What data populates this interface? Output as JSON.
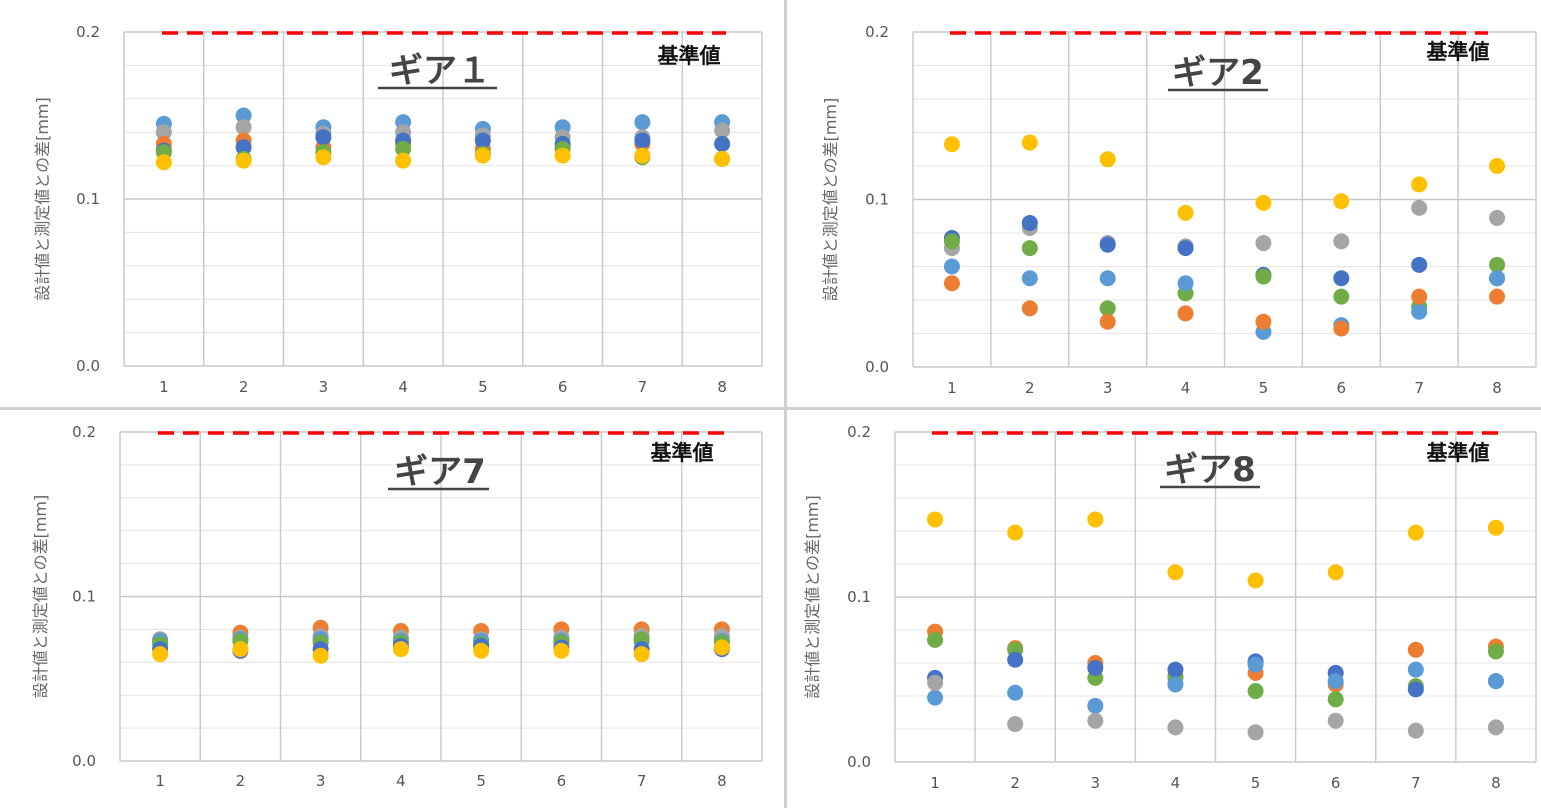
{
  "chart_data": [
    {
      "type": "scatter",
      "title": "ギア１",
      "ylabel": "設計値と測定値との差[mm]",
      "xlabel": "",
      "ylim": [
        0,
        0.2
      ],
      "yticks": [
        "0.0",
        "0.1",
        "0.2"
      ],
      "categories": [
        "1",
        "2",
        "3",
        "4",
        "5",
        "6",
        "7",
        "8"
      ],
      "reference": {
        "label": "基準値",
        "value": 0.2,
        "color": "#ff0000"
      },
      "series": [
        {
          "color": "#5b9bd5",
          "values": [
            0.145,
            0.15,
            0.143,
            0.146,
            0.142,
            0.143,
            0.146,
            0.146
          ]
        },
        {
          "color": "#a5a5a5",
          "values": [
            0.14,
            0.143,
            0.139,
            0.14,
            0.138,
            0.137,
            0.137,
            0.141
          ]
        },
        {
          "color": "#ed7d31",
          "values": [
            0.133,
            0.135,
            0.131,
            0.133,
            0.13,
            0.132,
            0.133,
            0.133
          ]
        },
        {
          "color": "#4472c4",
          "values": [
            0.129,
            0.131,
            0.137,
            0.135,
            0.135,
            0.133,
            0.135,
            0.133
          ]
        },
        {
          "color": "#70ad47",
          "values": [
            0.128,
            0.124,
            0.128,
            0.13,
            0.127,
            0.13,
            0.125,
            0.124
          ]
        },
        {
          "color": "#ffc000",
          "values": [
            0.122,
            0.123,
            0.125,
            0.123,
            0.126,
            0.126,
            0.126,
            0.124
          ]
        }
      ]
    },
    {
      "type": "scatter",
      "title": "ギア2",
      "ylabel": "設計値と測定値との差[mm]",
      "xlabel": "",
      "ylim": [
        0,
        0.2
      ],
      "yticks": [
        "0.0",
        "0.1",
        "0.2"
      ],
      "categories": [
        "1",
        "2",
        "3",
        "4",
        "5",
        "6",
        "7",
        "8"
      ],
      "reference": {
        "label": "基準値",
        "value": 0.2,
        "color": "#ff0000"
      },
      "series": [
        {
          "color": "#ffc000",
          "values": [
            0.133,
            0.134,
            0.124,
            0.092,
            0.098,
            0.099,
            0.109,
            0.12
          ]
        },
        {
          "color": "#a5a5a5",
          "values": [
            0.071,
            0.083,
            0.074,
            0.072,
            0.074,
            0.075,
            0.095,
            0.089
          ]
        },
        {
          "color": "#4472c4",
          "values": [
            0.077,
            0.086,
            0.073,
            0.071,
            0.055,
            0.053,
            0.061,
            0.053
          ]
        },
        {
          "color": "#70ad47",
          "values": [
            0.075,
            0.071,
            0.035,
            0.044,
            0.054,
            0.042,
            0.036,
            0.061
          ]
        },
        {
          "color": "#5b9bd5",
          "values": [
            0.06,
            0.053,
            0.053,
            0.05,
            0.021,
            0.025,
            0.033,
            0.053
          ]
        },
        {
          "color": "#ed7d31",
          "values": [
            0.05,
            0.035,
            0.027,
            0.032,
            0.027,
            0.023,
            0.042,
            0.042
          ]
        }
      ]
    },
    {
      "type": "scatter",
      "title": "ギア7",
      "ylabel": "設計値と測定値との差[mm]",
      "xlabel": "",
      "ylim": [
        0,
        0.2
      ],
      "yticks": [
        "0.0",
        "0.1",
        "0.2"
      ],
      "categories": [
        "1",
        "2",
        "3",
        "4",
        "5",
        "6",
        "7",
        "8"
      ],
      "reference": {
        "label": "基準値",
        "value": 0.2,
        "color": "#ff0000"
      },
      "series": [
        {
          "color": "#ed7d31",
          "values": [
            0.072,
            0.078,
            0.081,
            0.079,
            0.079,
            0.08,
            0.08,
            0.08
          ]
        },
        {
          "color": "#a5a5a5",
          "values": [
            0.074,
            0.075,
            0.076,
            0.075,
            0.074,
            0.075,
            0.076,
            0.076
          ]
        },
        {
          "color": "#5b9bd5",
          "values": [
            0.073,
            0.074,
            0.074,
            0.073,
            0.073,
            0.073,
            0.073,
            0.073
          ]
        },
        {
          "color": "#70ad47",
          "values": [
            0.071,
            0.073,
            0.072,
            0.072,
            0.071,
            0.072,
            0.074,
            0.072
          ]
        },
        {
          "color": "#4472c4",
          "values": [
            0.068,
            0.067,
            0.068,
            0.07,
            0.07,
            0.069,
            0.068,
            0.068
          ]
        },
        {
          "color": "#ffc000",
          "values": [
            0.065,
            0.068,
            0.064,
            0.068,
            0.067,
            0.067,
            0.065,
            0.069
          ]
        }
      ]
    },
    {
      "type": "scatter",
      "title": "ギア8",
      "ylabel": "設計値と測定値との差[mm]",
      "xlabel": "",
      "ylim": [
        0,
        0.2
      ],
      "yticks": [
        "0.0",
        "0.1",
        "0.2"
      ],
      "categories": [
        "1",
        "2",
        "3",
        "4",
        "5",
        "6",
        "7",
        "8"
      ],
      "reference": {
        "label": "基準値",
        "value": 0.2,
        "color": "#ff0000"
      },
      "series": [
        {
          "color": "#ffc000",
          "values": [
            0.147,
            0.139,
            0.147,
            0.115,
            0.11,
            0.115,
            0.139,
            0.142
          ]
        },
        {
          "color": "#ed7d31",
          "values": [
            0.079,
            0.069,
            0.06,
            0.052,
            0.054,
            0.047,
            0.068,
            0.07
          ]
        },
        {
          "color": "#70ad47",
          "values": [
            0.074,
            0.068,
            0.051,
            0.051,
            0.043,
            0.038,
            0.046,
            0.067
          ]
        },
        {
          "color": "#4472c4",
          "values": [
            0.051,
            0.062,
            0.057,
            0.056,
            0.061,
            0.054,
            0.044,
            0.049
          ]
        },
        {
          "color": "#5b9bd5",
          "values": [
            0.039,
            0.042,
            0.034,
            0.047,
            0.059,
            0.049,
            0.056,
            0.049
          ]
        },
        {
          "color": "#a5a5a5",
          "values": [
            0.048,
            0.023,
            0.025,
            0.021,
            0.018,
            0.025,
            0.019,
            0.021
          ]
        }
      ]
    }
  ]
}
